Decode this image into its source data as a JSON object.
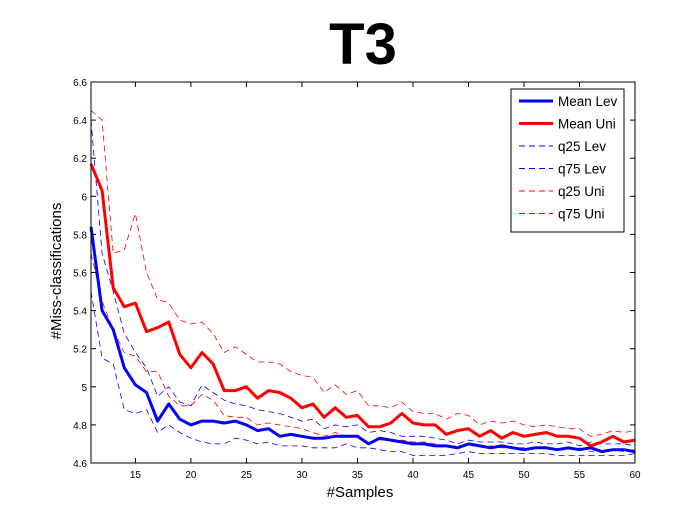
{
  "chart_data": {
    "type": "line",
    "title": "T3",
    "xlabel": "#Samples",
    "ylabel": "#Miss-classifications",
    "xlim": [
      11,
      60
    ],
    "ylim": [
      4.6,
      6.6
    ],
    "xticks": [
      15,
      20,
      25,
      30,
      35,
      40,
      45,
      50,
      55,
      60
    ],
    "yticks": [
      4.6,
      4.8,
      5.0,
      5.2,
      5.4,
      5.6,
      5.8,
      6.0,
      6.2,
      6.4,
      6.6
    ],
    "ytick_labels": [
      "4.6",
      "4.8",
      "5",
      "5.2",
      "5.4",
      "5.6",
      "5.8",
      "6",
      "6.2",
      "6.4",
      "6.6"
    ],
    "legend_position": "top-right",
    "grid": false,
    "x": [
      11,
      12,
      13,
      14,
      15,
      16,
      17,
      18,
      19,
      20,
      21,
      22,
      23,
      24,
      25,
      26,
      27,
      28,
      29,
      30,
      31,
      32,
      33,
      34,
      35,
      36,
      37,
      38,
      39,
      40,
      41,
      42,
      43,
      44,
      45,
      46,
      47,
      48,
      49,
      50,
      51,
      52,
      53,
      54,
      55,
      56,
      57,
      58,
      59,
      60
    ],
    "series": [
      {
        "name": "Mean Lev",
        "color": "#0000ff",
        "style": "solid",
        "width": 3,
        "values": [
          5.84,
          5.4,
          5.3,
          5.1,
          5.01,
          4.97,
          4.82,
          4.91,
          4.83,
          4.8,
          4.82,
          4.82,
          4.81,
          4.82,
          4.8,
          4.77,
          4.78,
          4.74,
          4.75,
          4.74,
          4.73,
          4.73,
          4.74,
          4.74,
          4.74,
          4.7,
          4.73,
          4.72,
          4.71,
          4.7,
          4.7,
          4.69,
          4.69,
          4.68,
          4.7,
          4.69,
          4.68,
          4.69,
          4.68,
          4.67,
          4.68,
          4.68,
          4.67,
          4.68,
          4.67,
          4.68,
          4.66,
          4.67,
          4.67,
          4.66
        ]
      },
      {
        "name": "Mean Uni",
        "color": "#ff0000",
        "style": "solid",
        "width": 3,
        "values": [
          6.17,
          6.03,
          5.52,
          5.42,
          5.44,
          5.29,
          5.31,
          5.34,
          5.17,
          5.1,
          5.18,
          5.12,
          4.98,
          4.98,
          5.0,
          4.94,
          4.98,
          4.97,
          4.94,
          4.89,
          4.91,
          4.84,
          4.89,
          4.84,
          4.85,
          4.79,
          4.79,
          4.81,
          4.86,
          4.81,
          4.8,
          4.8,
          4.75,
          4.77,
          4.78,
          4.74,
          4.77,
          4.73,
          4.76,
          4.74,
          4.75,
          4.76,
          4.74,
          4.74,
          4.73,
          4.69,
          4.71,
          4.74,
          4.71,
          4.72
        ]
      },
      {
        "name": "q25 Lev",
        "color": "#0000ff",
        "style": "dashed",
        "width": 0.8,
        "values": [
          5.5,
          5.15,
          5.12,
          4.88,
          4.86,
          4.88,
          4.76,
          4.8,
          4.76,
          4.73,
          4.71,
          4.7,
          4.7,
          4.73,
          4.72,
          4.7,
          4.71,
          4.69,
          4.69,
          4.69,
          4.68,
          4.68,
          4.68,
          4.7,
          4.68,
          4.68,
          4.67,
          4.66,
          4.66,
          4.64,
          4.64,
          4.64,
          4.64,
          4.65,
          4.66,
          4.65,
          4.65,
          4.65,
          4.65,
          4.65,
          4.65,
          4.65,
          4.64,
          4.64,
          4.64,
          4.64,
          4.64,
          4.64,
          4.64,
          4.65
        ]
      },
      {
        "name": "q75 Lev",
        "color": "#0000ff",
        "style": "dashed",
        "width": 0.8,
        "values": [
          6.4,
          5.7,
          5.5,
          5.28,
          5.18,
          5.1,
          4.95,
          5.0,
          4.92,
          4.9,
          5.01,
          4.97,
          4.93,
          4.91,
          4.9,
          4.88,
          4.87,
          4.86,
          4.84,
          4.82,
          4.83,
          4.78,
          4.8,
          4.79,
          4.8,
          4.76,
          4.77,
          4.76,
          4.74,
          4.74,
          4.74,
          4.73,
          4.72,
          4.7,
          4.72,
          4.71,
          4.71,
          4.71,
          4.7,
          4.7,
          4.71,
          4.7,
          4.7,
          4.71,
          4.69,
          4.71,
          4.7,
          4.7,
          4.7,
          4.69
        ]
      },
      {
        "name": "q25 Uni",
        "color": "#ff0000",
        "style": "dashed",
        "width": 0.8,
        "values": [
          5.7,
          5.45,
          5.3,
          5.18,
          5.16,
          5.08,
          5.08,
          4.95,
          4.9,
          4.9,
          4.96,
          4.93,
          4.85,
          4.84,
          4.84,
          4.8,
          4.81,
          4.8,
          4.79,
          4.78,
          4.76,
          4.74,
          4.76,
          4.74,
          4.74,
          4.71,
          4.72,
          4.72,
          4.72,
          4.71,
          4.71,
          4.7,
          4.69,
          4.69,
          4.7,
          4.69,
          4.69,
          4.68,
          4.68,
          4.68,
          4.68,
          4.68,
          4.67,
          4.67,
          4.68,
          4.66,
          4.66,
          4.67,
          4.66,
          4.67
        ]
      },
      {
        "name": "q75 Uni",
        "color": "#ff0000",
        "style": "dashed",
        "width": 0.8,
        "values": [
          6.45,
          6.4,
          5.7,
          5.72,
          5.91,
          5.6,
          5.46,
          5.44,
          5.35,
          5.33,
          5.34,
          5.28,
          5.18,
          5.21,
          5.17,
          5.13,
          5.13,
          5.12,
          5.08,
          5.06,
          5.05,
          4.97,
          5.01,
          4.96,
          4.98,
          4.9,
          4.9,
          4.89,
          4.92,
          4.87,
          4.86,
          4.86,
          4.83,
          4.86,
          4.85,
          4.8,
          4.82,
          4.81,
          4.82,
          4.8,
          4.79,
          4.8,
          4.79,
          4.78,
          4.78,
          4.74,
          4.75,
          4.77,
          4.76,
          4.77
        ]
      }
    ]
  }
}
